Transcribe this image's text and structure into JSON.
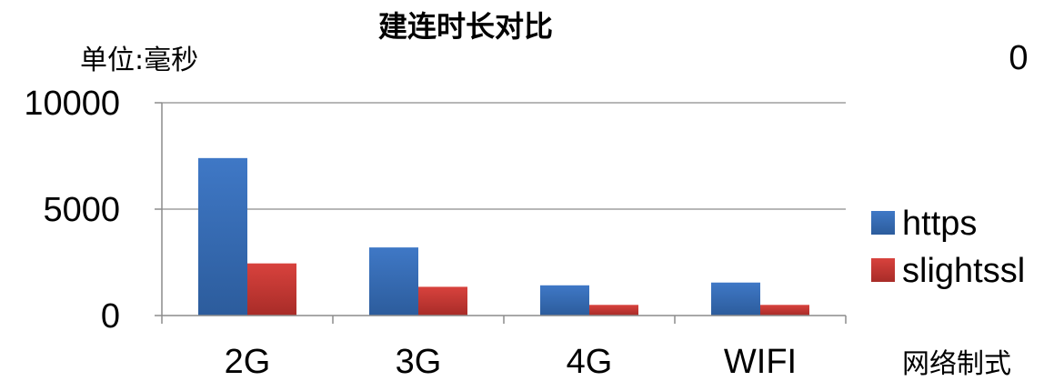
{
  "chart_data": {
    "type": "bar",
    "title": "建连时长对比",
    "unit_label": "单位:毫秒",
    "xlabel": "网络制式",
    "ylabel": "",
    "corner_note": "0",
    "categories": [
      "2G",
      "3G",
      "4G",
      "WIFI"
    ],
    "ylim": [
      0,
      10000
    ],
    "yticks": [
      0,
      5000,
      10000
    ],
    "ytick_labels": [
      "0",
      "5000",
      "10000"
    ],
    "grid": true,
    "legend_position": "right",
    "series": [
      {
        "name": "https",
        "color": "#3f78c6",
        "color_dark": "#2c5c9c",
        "values": [
          7400,
          3200,
          1420,
          1550
        ]
      },
      {
        "name": "slightssl",
        "color": "#d8423d",
        "color_dark": "#a82c28",
        "values": [
          2450,
          1350,
          500,
          500
        ]
      }
    ]
  }
}
